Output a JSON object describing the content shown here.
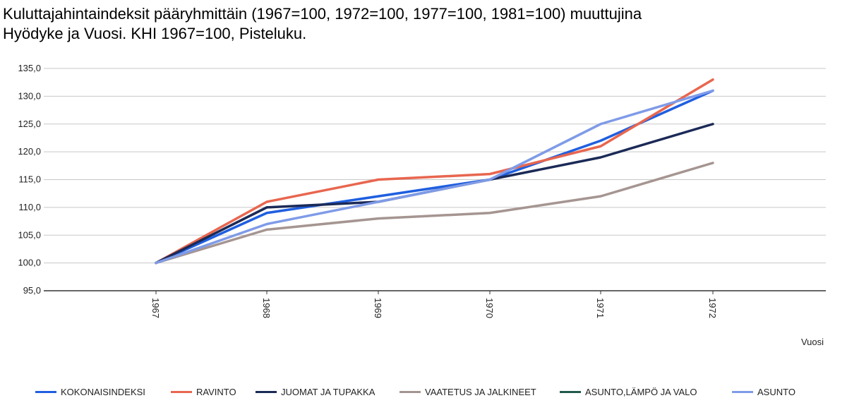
{
  "title": {
    "line1": "Kuluttajahintaindeksit pääryhmittäin (1967=100, 1972=100, 1977=100, 1981=100) muuttujina",
    "line2": "Hyödyke ja Vuosi. KHI 1967=100, Pisteluku."
  },
  "chart_data": {
    "type": "line",
    "title": "Kuluttajahintaindeksit pääryhmittäin (1967=100, 1972=100, 1977=100, 1981=100) muuttujina Hyödyke ja Vuosi. KHI 1967=100, Pisteluku.",
    "xlabel": "Vuosi",
    "ylabel": "",
    "categories": [
      "1967",
      "1968",
      "1969",
      "1970",
      "1971",
      "1972"
    ],
    "ylim": [
      95,
      135
    ],
    "yticks": [
      "95,0",
      "100,0",
      "105,0",
      "110,0",
      "115,0",
      "120,0",
      "125,0",
      "130,0",
      "135,0"
    ],
    "grid": true,
    "legend_position": "bottom",
    "series": [
      {
        "name": "KOKONAISINDEKSI",
        "color": "#1f5fe0",
        "values": [
          100,
          109,
          112,
          115,
          122,
          131
        ]
      },
      {
        "name": "RAVINTO",
        "color": "#e8664f",
        "values": [
          100,
          111,
          115,
          116,
          121,
          133
        ]
      },
      {
        "name": "JUOMAT JA TUPAKKA",
        "color": "#1b2a57",
        "values": [
          100,
          110,
          111,
          115,
          119,
          125
        ]
      },
      {
        "name": "VAATETUS JA JALKINEET",
        "color": "#a59591",
        "values": [
          100,
          106,
          108,
          109,
          112,
          118
        ]
      },
      {
        "name": "ASUNTO,LÄMPÖ JA VALO",
        "color": "#1f5a4d",
        "values": [
          null,
          null,
          null,
          null,
          null,
          null
        ]
      },
      {
        "name": "ASUNTO",
        "color": "#7f9be8",
        "values": [
          100,
          107,
          111,
          115,
          125,
          131
        ]
      }
    ]
  }
}
